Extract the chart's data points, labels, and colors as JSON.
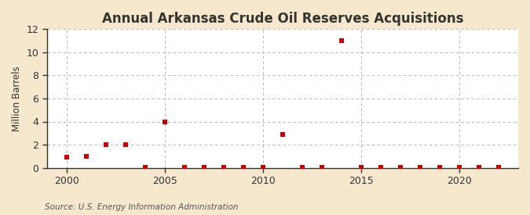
{
  "title": "Annual Arkansas Crude Oil Reserves Acquisitions",
  "ylabel": "Million Barrels",
  "source": "Source: U.S. Energy Information Administration",
  "fig_background_color": "#f5e8cc",
  "plot_background_color": "#ffffff",
  "marker_color": "#cc0000",
  "grid_color": "#aaaaaa",
  "spine_color": "#333333",
  "years": [
    2000,
    2001,
    2002,
    2003,
    2004,
    2005,
    2006,
    2007,
    2008,
    2009,
    2010,
    2011,
    2012,
    2013,
    2014,
    2015,
    2016,
    2017,
    2018,
    2019,
    2020,
    2021,
    2022
  ],
  "values": [
    0.9,
    1.0,
    2.0,
    2.0,
    0.05,
    3.95,
    0.05,
    0.05,
    0.05,
    0.05,
    0.05,
    2.9,
    0.05,
    0.05,
    11.0,
    0.05,
    0.05,
    0.05,
    0.05,
    0.05,
    0.05,
    0.05,
    0.05
  ],
  "xlim": [
    1999,
    2023
  ],
  "ylim": [
    0,
    12
  ],
  "yticks": [
    0,
    2,
    4,
    6,
    8,
    10,
    12
  ],
  "xticks": [
    2000,
    2005,
    2010,
    2015,
    2020
  ],
  "title_fontsize": 12,
  "label_fontsize": 8.5,
  "tick_fontsize": 9,
  "source_fontsize": 7.5
}
